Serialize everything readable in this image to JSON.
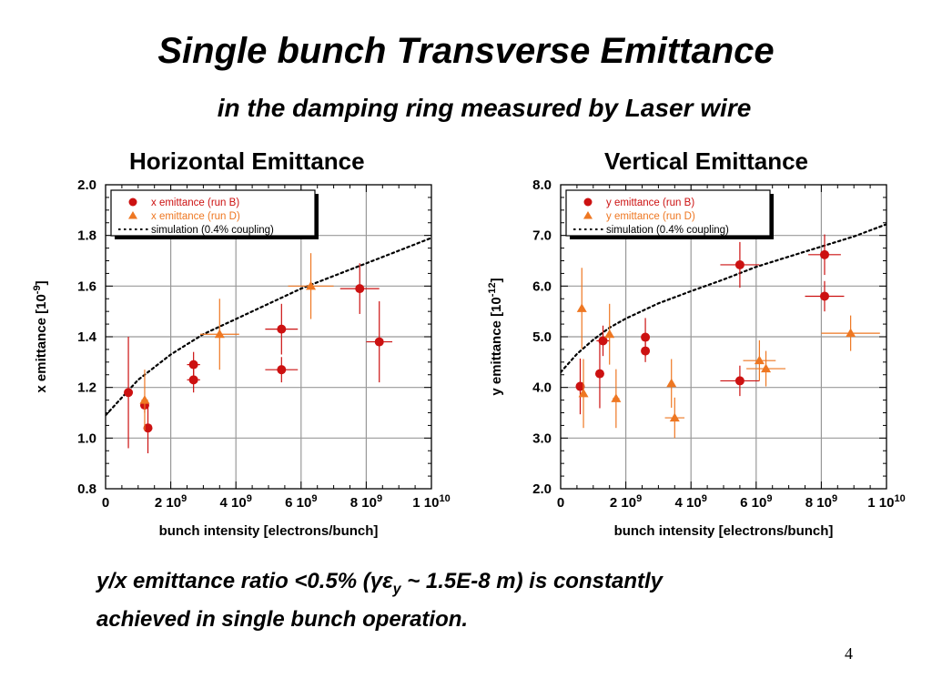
{
  "slide": {
    "title": "Single bunch Transverse Emittance",
    "subtitle": "in the damping ring measured by Laser wire",
    "conclusion_part1": "y/x emittance ratio <0.5% (",
    "conclusion_gamma": "γ",
    "conclusion_eps": "ε",
    "conclusion_sub": "y",
    "conclusion_part2": " ~ 1.5E-8 m) is constantly",
    "conclusion_line2": "achieved in single bunch operation.",
    "page_number": "4"
  },
  "colors": {
    "run_b": "#cc1111",
    "run_d": "#ee7722",
    "grid": "#999999",
    "axis": "#000000"
  },
  "chart_data": [
    {
      "type": "scatter",
      "title": "Horizontal Emittance",
      "xlabel": "bunch intensity [electrons/bunch]",
      "ylabel_main": "x emittance [10",
      "ylabel_exp": "-9",
      "ylabel_close": "]",
      "xlim": [
        0,
        10000000000.0
      ],
      "ylim": [
        0.8,
        2.0
      ],
      "xticks": [
        0,
        2000000000.0,
        4000000000.0,
        6000000000.0,
        8000000000.0,
        10000000000.0
      ],
      "xtick_labels": [
        {
          "main": "0",
          "exp": ""
        },
        {
          "main": "2 10",
          "exp": "9"
        },
        {
          "main": "4 10",
          "exp": "9"
        },
        {
          "main": "6 10",
          "exp": "9"
        },
        {
          "main": "8 10",
          "exp": "9"
        },
        {
          "main": "1 10",
          "exp": "10"
        }
      ],
      "yticks": [
        0.8,
        1.0,
        1.2,
        1.4,
        1.6,
        1.8,
        2.0
      ],
      "ytick_labels": [
        "0.8",
        "1.0",
        "1.2",
        "1.4",
        "1.6",
        "1.8",
        "2.0"
      ],
      "grid": true,
      "legend_position": "top-left",
      "series": [
        {
          "name": "x emittance (run B)",
          "marker": "circle",
          "color": "#cc1111",
          "points": [
            {
              "x": 700000000.0,
              "y": 1.18,
              "xerr": 0.0,
              "yerr": 0.22
            },
            {
              "x": 1200000000.0,
              "y": 1.13,
              "xerr": 50000000.0,
              "yerr": 0.03
            },
            {
              "x": 1300000000.0,
              "y": 1.04,
              "xerr": 80000000.0,
              "yerr": 0.1
            },
            {
              "x": 2700000000.0,
              "y": 1.29,
              "xerr": 200000000.0,
              "yerr": 0.05
            },
            {
              "x": 2700000000.0,
              "y": 1.23,
              "xerr": 200000000.0,
              "yerr": 0.05
            },
            {
              "x": 5400000000.0,
              "y": 1.43,
              "xerr": 500000000.0,
              "yerr": 0.1
            },
            {
              "x": 5400000000.0,
              "y": 1.27,
              "xerr": 500000000.0,
              "yerr": 0.05
            },
            {
              "x": 7800000000.0,
              "y": 1.59,
              "xerr": 600000000.0,
              "yerr": 0.1
            },
            {
              "x": 8400000000.0,
              "y": 1.38,
              "xerr": 400000000.0,
              "yerr": 0.16
            }
          ]
        },
        {
          "name": "x emittance (run D)",
          "marker": "triangle",
          "color": "#ee7722",
          "points": [
            {
              "x": 1200000000.0,
              "y": 1.15,
              "xerr": 100000000.0,
              "yerr": 0.12
            },
            {
              "x": 3500000000.0,
              "y": 1.41,
              "xerr": 600000000.0,
              "yerr": 0.14
            },
            {
              "x": 6300000000.0,
              "y": 1.6,
              "xerr": 700000000.0,
              "yerr": 0.13
            }
          ]
        },
        {
          "name": "simulation (0.4% coupling)",
          "line": "dotted",
          "color": "#000000",
          "curve_points": [
            [
              0.0,
              1.09
            ],
            [
              500000000.0,
              1.16
            ],
            [
              1000000000.0,
              1.23
            ],
            [
              1500000000.0,
              1.28
            ],
            [
              2000000000.0,
              1.33
            ],
            [
              2500000000.0,
              1.37
            ],
            [
              3000000000.0,
              1.41
            ],
            [
              4000000000.0,
              1.47
            ],
            [
              5000000000.0,
              1.53
            ],
            [
              6000000000.0,
              1.59
            ],
            [
              7000000000.0,
              1.64
            ],
            [
              8000000000.0,
              1.69
            ],
            [
              9000000000.0,
              1.74
            ],
            [
              10000000000.0,
              1.79
            ]
          ]
        }
      ]
    },
    {
      "type": "scatter",
      "title": "Vertical Emittance",
      "xlabel": "bunch intensity [electrons/bunch]",
      "ylabel_main": "y emittance [10",
      "ylabel_exp": "-12",
      "ylabel_close": "]",
      "xlim": [
        0,
        10000000000.0
      ],
      "ylim": [
        2.0,
        8.0
      ],
      "xticks": [
        0,
        2000000000.0,
        4000000000.0,
        6000000000.0,
        8000000000.0,
        10000000000.0
      ],
      "xtick_labels": [
        {
          "main": "0",
          "exp": ""
        },
        {
          "main": "2 10",
          "exp": "9"
        },
        {
          "main": "4 10",
          "exp": "9"
        },
        {
          "main": "6 10",
          "exp": "9"
        },
        {
          "main": "8 10",
          "exp": "9"
        },
        {
          "main": "1 10",
          "exp": "10"
        }
      ],
      "yticks": [
        2,
        3,
        4,
        5,
        6,
        7,
        8
      ],
      "ytick_labels": [
        "2.0",
        "3.0",
        "4.0",
        "5.0",
        "6.0",
        "7.0",
        "8.0"
      ],
      "grid": true,
      "legend_position": "top-left",
      "series": [
        {
          "name": "y emittance (run B)",
          "marker": "circle",
          "color": "#cc1111",
          "points": [
            {
              "x": 600000000.0,
              "y": 4.02,
              "xerr": 0.0,
              "yerr": 0.55
            },
            {
              "x": 1300000000.0,
              "y": 4.92,
              "xerr": 200000000.0,
              "yerr": 0.3
            },
            {
              "x": 1200000000.0,
              "y": 4.27,
              "xerr": 0.0,
              "yerr": 0.68
            },
            {
              "x": 2600000000.0,
              "y": 4.99,
              "xerr": 100000000.0,
              "yerr": 0.38
            },
            {
              "x": 2600000000.0,
              "y": 4.72,
              "xerr": 100000000.0,
              "yerr": 0.22
            },
            {
              "x": 5500000000.0,
              "y": 6.42,
              "xerr": 600000000.0,
              "yerr": 0.45
            },
            {
              "x": 5500000000.0,
              "y": 4.13,
              "xerr": 600000000.0,
              "yerr": 0.3
            },
            {
              "x": 8100000000.0,
              "y": 6.62,
              "xerr": 500000000.0,
              "yerr": 0.4
            },
            {
              "x": 8100000000.0,
              "y": 5.8,
              "xerr": 600000000.0,
              "yerr": 0.3
            }
          ]
        },
        {
          "name": "y emittance (run D)",
          "marker": "triangle",
          "color": "#ee7722",
          "points": [
            {
              "x": 650000000.0,
              "y": 5.56,
              "xerr": 0.0,
              "yerr": 0.8
            },
            {
              "x": 700000000.0,
              "y": 3.88,
              "xerr": 0.0,
              "yerr": 0.68
            },
            {
              "x": 1500000000.0,
              "y": 5.05,
              "xerr": 0.0,
              "yerr": 0.6
            },
            {
              "x": 1700000000.0,
              "y": 3.78,
              "xerr": 100000000.0,
              "yerr": 0.58
            },
            {
              "x": 3400000000.0,
              "y": 4.08,
              "xerr": 0.0,
              "yerr": 0.48
            },
            {
              "x": 3500000000.0,
              "y": 3.4,
              "xerr": 300000000.0,
              "yerr": 0.4
            },
            {
              "x": 6100000000.0,
              "y": 4.53,
              "xerr": 500000000.0,
              "yerr": 0.4
            },
            {
              "x": 6300000000.0,
              "y": 4.37,
              "xerr": 600000000.0,
              "yerr": 0.35
            },
            {
              "x": 8900000000.0,
              "y": 5.07,
              "xerr": 900000000.0,
              "yerr": 0.35
            }
          ]
        },
        {
          "name": "simulation (0.4% coupling)",
          "line": "dotted",
          "color": "#000000",
          "curve_points": [
            [
              0.0,
              4.3
            ],
            [
              500000000.0,
              4.66
            ],
            [
              1000000000.0,
              4.94
            ],
            [
              1500000000.0,
              5.18
            ],
            [
              2000000000.0,
              5.36
            ],
            [
              3000000000.0,
              5.66
            ],
            [
              4000000000.0,
              5.9
            ],
            [
              5000000000.0,
              6.13
            ],
            [
              6000000000.0,
              6.38
            ],
            [
              7000000000.0,
              6.58
            ],
            [
              8000000000.0,
              6.78
            ],
            [
              9000000000.0,
              6.98
            ],
            [
              10000000000.0,
              7.22
            ]
          ]
        }
      ]
    }
  ]
}
